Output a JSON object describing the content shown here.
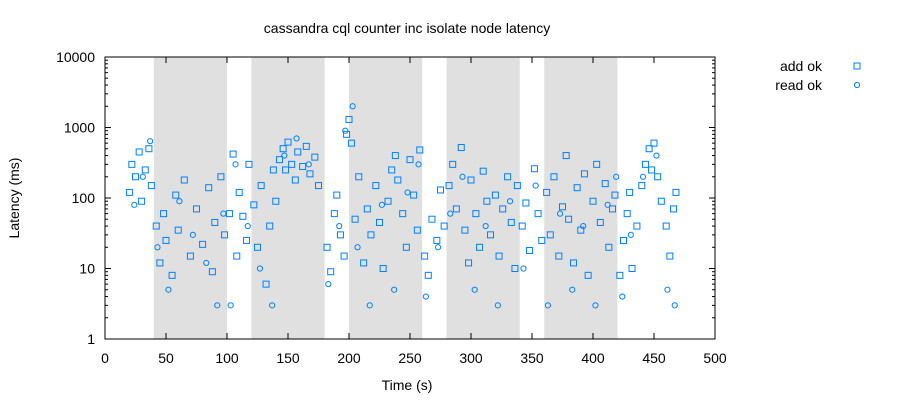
{
  "chart_data": {
    "type": "scatter",
    "title": "cassandra cql counter inc isolate node latency",
    "xlabel": "Time (s)",
    "ylabel": "Latency (ms)",
    "xlim": [
      0,
      500
    ],
    "ylim": [
      1,
      10000
    ],
    "yscale": "log",
    "grid": false,
    "legend_position": "top-right, outside plot",
    "x_ticks": [
      "0",
      "50",
      "100",
      "150",
      "200",
      "250",
      "300",
      "350",
      "400",
      "450",
      "500"
    ],
    "y_ticks": [
      "1",
      "10",
      "100",
      "1000",
      "10000"
    ],
    "shaded_intervals": [
      [
        40,
        100
      ],
      [
        120,
        180
      ],
      [
        200,
        260
      ],
      [
        280,
        340
      ],
      [
        360,
        420
      ]
    ],
    "shade_color": "#e0e0e0",
    "series": [
      {
        "name": "add ok",
        "marker": "square",
        "color": "#0080ff",
        "points": [
          [
            20,
            120
          ],
          [
            22,
            300
          ],
          [
            25,
            200
          ],
          [
            28,
            450
          ],
          [
            30,
            90
          ],
          [
            33,
            250
          ],
          [
            36,
            500
          ],
          [
            38,
            150
          ],
          [
            42,
            40
          ],
          [
            45,
            12
          ],
          [
            48,
            60
          ],
          [
            50,
            25
          ],
          [
            55,
            8
          ],
          [
            58,
            110
          ],
          [
            60,
            35
          ],
          [
            65,
            180
          ],
          [
            70,
            15
          ],
          [
            75,
            70
          ],
          [
            80,
            22
          ],
          [
            85,
            140
          ],
          [
            88,
            9
          ],
          [
            90,
            45
          ],
          [
            95,
            200
          ],
          [
            98,
            30
          ],
          [
            102,
            60
          ],
          [
            105,
            420
          ],
          [
            108,
            15
          ],
          [
            110,
            120
          ],
          [
            113,
            55
          ],
          [
            116,
            25
          ],
          [
            118,
            300
          ],
          [
            122,
            80
          ],
          [
            125,
            20
          ],
          [
            128,
            150
          ],
          [
            132,
            6
          ],
          [
            135,
            40
          ],
          [
            138,
            250
          ],
          [
            140,
            90
          ],
          [
            143,
            350
          ],
          [
            146,
            500
          ],
          [
            148,
            250
          ],
          [
            150,
            620
          ],
          [
            153,
            300
          ],
          [
            156,
            180
          ],
          [
            158,
            450
          ],
          [
            162,
            280
          ],
          [
            165,
            540
          ],
          [
            168,
            220
          ],
          [
            172,
            380
          ],
          [
            175,
            150
          ],
          [
            182,
            20
          ],
          [
            185,
            9
          ],
          [
            188,
            60
          ],
          [
            190,
            110
          ],
          [
            193,
            30
          ],
          [
            196,
            15
          ],
          [
            198,
            800
          ],
          [
            200,
            1300
          ],
          [
            202,
            600
          ],
          [
            205,
            50
          ],
          [
            208,
            200
          ],
          [
            212,
            12
          ],
          [
            215,
            70
          ],
          [
            218,
            30
          ],
          [
            222,
            150
          ],
          [
            225,
            45
          ],
          [
            228,
            10
          ],
          [
            232,
            90
          ],
          [
            235,
            250
          ],
          [
            238,
            400
          ],
          [
            240,
            180
          ],
          [
            244,
            60
          ],
          [
            247,
            20
          ],
          [
            250,
            350
          ],
          [
            253,
            110
          ],
          [
            256,
            35
          ],
          [
            258,
            480
          ],
          [
            262,
            15
          ],
          [
            265,
            8
          ],
          [
            268,
            50
          ],
          [
            272,
            25
          ],
          [
            275,
            130
          ],
          [
            278,
            40
          ],
          [
            282,
            150
          ],
          [
            285,
            300
          ],
          [
            288,
            70
          ],
          [
            292,
            520
          ],
          [
            295,
            35
          ],
          [
            298,
            12
          ],
          [
            300,
            180
          ],
          [
            304,
            60
          ],
          [
            307,
            20
          ],
          [
            310,
            240
          ],
          [
            313,
            90
          ],
          [
            316,
            30
          ],
          [
            320,
            110
          ],
          [
            323,
            15
          ],
          [
            326,
            70
          ],
          [
            330,
            200
          ],
          [
            333,
            45
          ],
          [
            336,
            10
          ],
          [
            338,
            150
          ],
          [
            342,
            40
          ],
          [
            345,
            85
          ],
          [
            348,
            18
          ],
          [
            352,
            260
          ],
          [
            355,
            60
          ],
          [
            358,
            25
          ],
          [
            362,
            120
          ],
          [
            365,
            30
          ],
          [
            368,
            200
          ],
          [
            372,
            15
          ],
          [
            375,
            75
          ],
          [
            378,
            400
          ],
          [
            380,
            50
          ],
          [
            384,
            12
          ],
          [
            387,
            140
          ],
          [
            390,
            35
          ],
          [
            393,
            220
          ],
          [
            396,
            8
          ],
          [
            400,
            90
          ],
          [
            403,
            300
          ],
          [
            406,
            45
          ],
          [
            410,
            160
          ],
          [
            413,
            20
          ],
          [
            416,
            70
          ],
          [
            418,
            110
          ],
          [
            422,
            8
          ],
          [
            425,
            25
          ],
          [
            428,
            60
          ],
          [
            430,
            120
          ],
          [
            432,
            10
          ],
          [
            436,
            40
          ],
          [
            440,
            150
          ],
          [
            443,
            300
          ],
          [
            446,
            500
          ],
          [
            448,
            250
          ],
          [
            450,
            600
          ],
          [
            453,
            200
          ],
          [
            456,
            90
          ],
          [
            460,
            40
          ],
          [
            463,
            15
          ],
          [
            466,
            70
          ],
          [
            468,
            120
          ]
        ]
      },
      {
        "name": "read ok",
        "marker": "circle",
        "color": "#0080ff",
        "points": [
          [
            24,
            80
          ],
          [
            31,
            200
          ],
          [
            37,
            640
          ],
          [
            43,
            20
          ],
          [
            52,
            5
          ],
          [
            61,
            90
          ],
          [
            72,
            30
          ],
          [
            83,
            12
          ],
          [
            92,
            3
          ],
          [
            97,
            60
          ],
          [
            103,
            3
          ],
          [
            107,
            300
          ],
          [
            117,
            40
          ],
          [
            127,
            10
          ],
          [
            137,
            3
          ],
          [
            147,
            400
          ],
          [
            157,
            700
          ],
          [
            167,
            300
          ],
          [
            183,
            6
          ],
          [
            192,
            40
          ],
          [
            197,
            900
          ],
          [
            203,
            2000
          ],
          [
            207,
            20
          ],
          [
            217,
            3
          ],
          [
            227,
            80
          ],
          [
            237,
            5
          ],
          [
            248,
            120
          ],
          [
            257,
            300
          ],
          [
            263,
            4
          ],
          [
            273,
            20
          ],
          [
            283,
            60
          ],
          [
            293,
            200
          ],
          [
            303,
            5
          ],
          [
            312,
            40
          ],
          [
            322,
            3
          ],
          [
            332,
            90
          ],
          [
            343,
            10
          ],
          [
            353,
            150
          ],
          [
            363,
            3
          ],
          [
            373,
            60
          ],
          [
            383,
            5
          ],
          [
            392,
            40
          ],
          [
            402,
            3
          ],
          [
            412,
            80
          ],
          [
            419,
            200
          ],
          [
            424,
            4
          ],
          [
            431,
            30
          ],
          [
            441,
            200
          ],
          [
            452,
            400
          ],
          [
            461,
            5
          ],
          [
            467,
            3
          ]
        ]
      }
    ]
  }
}
